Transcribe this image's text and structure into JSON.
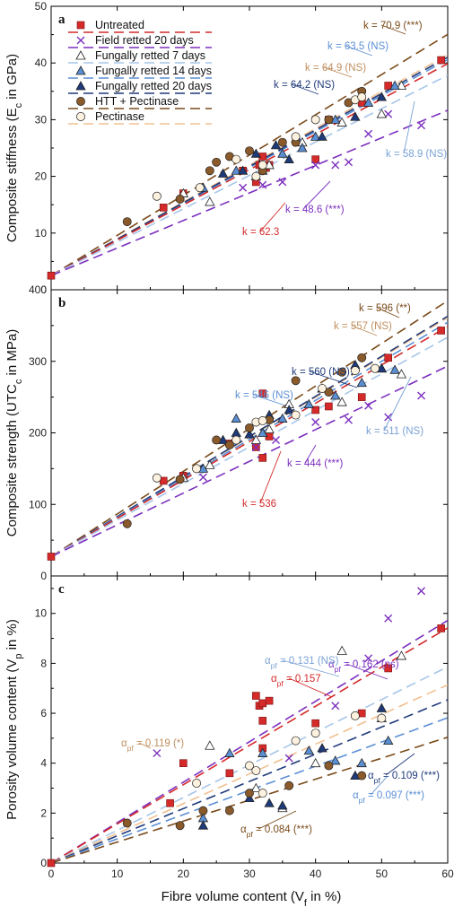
{
  "colors": {
    "untreated": "#d42a2a",
    "field": "#7b2fbe",
    "fung7": "#a7c6e8",
    "fung14": "#5b8fd4",
    "fung20": "#1f3a7a",
    "htt": "#7a4a1a",
    "htt_marker": "#8a5a2b",
    "pectinase": "#f0c090",
    "pectinase_marker": "#fdf2df"
  },
  "legend": {
    "untreated": "Untreated",
    "field": "Field retted 20 days",
    "fung7": "Fungally retted 7 days",
    "fung14": "Fungally retted 14 days",
    "fung20": "Fungally retted 20 days",
    "htt": "HTT + Pectinase",
    "pectinase": "Pectinase"
  },
  "chart_data": [
    {
      "type": "scatter",
      "panel_label": "a",
      "xlabel": "",
      "ylabel_main": "Composite stiffness (E",
      "ylabel_sub": "c",
      "ylabel_end": " in GPa)",
      "xlim": [
        0,
        60
      ],
      "ylim": [
        0,
        50
      ],
      "yticks": [
        "0",
        "10",
        "20",
        "30",
        "40",
        "50"
      ],
      "intercept": 2.5,
      "lines": [
        {
          "key": "htt",
          "slope": 70.9,
          "label": "k = 70.9 (***)"
        },
        {
          "key": "pectinase",
          "slope": 64.9,
          "label": "k = 64.9 (NS)"
        },
        {
          "key": "fung14",
          "slope": 63.5,
          "label": "k = 63.5 (NS)"
        },
        {
          "key": "fung20",
          "slope": 64.2,
          "label": "k = 64.2 (NS)"
        },
        {
          "key": "untreated",
          "slope": 62.3,
          "label": "k = 62.3"
        },
        {
          "key": "fung7",
          "slope": 58.9,
          "label": "k = 58.9 (NS)"
        },
        {
          "key": "field",
          "slope": 48.6,
          "label": "k = 48.6 (***)"
        }
      ],
      "series": [
        {
          "key": "untreated",
          "marker": "square",
          "points": [
            [
              0,
              2.5
            ],
            [
              17,
              14.5
            ],
            [
              20,
              17
            ],
            [
              29,
              21
            ],
            [
              31,
              19
            ],
            [
              31.5,
              22
            ],
            [
              32,
              23.5
            ],
            [
              32.5,
              21.5
            ],
            [
              33,
              22
            ],
            [
              40,
              23
            ],
            [
              42,
              30
            ],
            [
              47,
              33
            ],
            [
              51,
              36
            ],
            [
              59,
              40.5
            ]
          ]
        },
        {
          "key": "field",
          "marker": "x",
          "points": [
            [
              29,
              18
            ],
            [
              32,
              18.5
            ],
            [
              35,
              19
            ],
            [
              40,
              22
            ],
            [
              43,
              22
            ],
            [
              45,
              22.5
            ],
            [
              48,
              27.5
            ],
            [
              51,
              31
            ],
            [
              56,
              29
            ]
          ]
        },
        {
          "key": "fung7",
          "marker": "triangle",
          "points": [
            [
              20,
              17
            ],
            [
              24,
              15.5
            ],
            [
              31,
              20
            ],
            [
              33,
              22
            ],
            [
              38,
              26
            ],
            [
              44,
              29.5
            ],
            [
              50,
              31
            ],
            [
              53,
              36
            ]
          ]
        },
        {
          "key": "fung14",
          "marker": "triangle",
          "points": [
            [
              23,
              18
            ],
            [
              28,
              21
            ],
            [
              32,
              21
            ],
            [
              35,
              24
            ],
            [
              38,
              25
            ],
            [
              40,
              27
            ],
            [
              43,
              30
            ],
            [
              48,
              33
            ],
            [
              52,
              36
            ]
          ]
        },
        {
          "key": "fung20",
          "marker": "triangle",
          "points": [
            [
              26,
              20.5
            ],
            [
              29,
              21
            ],
            [
              31,
              24
            ],
            [
              34,
              25.5
            ],
            [
              36,
              23
            ],
            [
              41,
              27
            ],
            [
              46,
              30.5
            ],
            [
              50,
              34
            ]
          ]
        },
        {
          "key": "htt",
          "marker": "circle",
          "points": [
            [
              11.5,
              12
            ],
            [
              19.5,
              16
            ],
            [
              24,
              21
            ],
            [
              25,
              22.5
            ],
            [
              27,
              23.5
            ],
            [
              30,
              24.5
            ],
            [
              32,
              21
            ],
            [
              35,
              26
            ],
            [
              37,
              26
            ],
            [
              42,
              30
            ],
            [
              45,
              33
            ],
            [
              47,
              35
            ]
          ]
        },
        {
          "key": "pectinase",
          "marker": "circle",
          "points": [
            [
              16,
              16.5
            ],
            [
              22.5,
              18
            ],
            [
              28,
              23
            ],
            [
              31,
              20
            ],
            [
              32,
              22
            ],
            [
              37,
              27
            ],
            [
              40,
              30
            ],
            [
              46,
              33.5
            ],
            [
              47,
              34
            ]
          ]
        }
      ]
    },
    {
      "type": "scatter",
      "panel_label": "b",
      "xlabel": "",
      "ylabel_main": "Composite strength (UTC",
      "ylabel_sub": "c",
      "ylabel_end": " in MPa)",
      "xlim": [
        0,
        60
      ],
      "ylim": [
        0,
        400
      ],
      "yticks": [
        "0",
        "100",
        "200",
        "300",
        "400"
      ],
      "intercept": 27,
      "lines": [
        {
          "key": "htt",
          "slope": 596,
          "label": "k = 596 (**)"
        },
        {
          "key": "pectinase",
          "slope": 557,
          "label": "k = 557 (NS)"
        },
        {
          "key": "fung20",
          "slope": 560,
          "label": "k = 560 (NS)"
        },
        {
          "key": "fung14",
          "slope": 546,
          "label": "k = 546 (NS)"
        },
        {
          "key": "untreated",
          "slope": 536,
          "label": "k = 536"
        },
        {
          "key": "fung7",
          "slope": 511,
          "label": "k = 511 (NS)"
        },
        {
          "key": "field",
          "slope": 444,
          "label": "k = 444 (***)"
        }
      ],
      "series": [
        {
          "key": "untreated",
          "marker": "square",
          "points": [
            [
              0,
              27
            ],
            [
              17,
              133
            ],
            [
              20,
              140
            ],
            [
              27,
              185
            ],
            [
              31,
              180
            ],
            [
              32,
              165
            ],
            [
              32,
              255
            ],
            [
              33,
              195
            ],
            [
              42,
              237
            ],
            [
              40,
              232
            ],
            [
              47,
              250
            ],
            [
              51,
              305
            ],
            [
              59,
              343
            ]
          ]
        },
        {
          "key": "field",
          "marker": "x",
          "points": [
            [
              23,
              138
            ],
            [
              31,
              180
            ],
            [
              34,
              190
            ],
            [
              40,
              215
            ],
            [
              45,
              218
            ],
            [
              48,
              238
            ],
            [
              51,
              222
            ],
            [
              56,
              252
            ]
          ]
        },
        {
          "key": "fung7",
          "marker": "triangle",
          "points": [
            [
              20,
              137
            ],
            [
              24,
              155
            ],
            [
              31,
              190
            ],
            [
              33,
              205
            ],
            [
              36,
              240
            ],
            [
              44,
              243
            ],
            [
              50,
              290
            ],
            [
              53,
              282
            ]
          ]
        },
        {
          "key": "fung14",
          "marker": "triangle",
          "points": [
            [
              23,
              150
            ],
            [
              28,
              220
            ],
            [
              32,
              200
            ],
            [
              35,
              220
            ],
            [
              39,
              240
            ],
            [
              43,
              252
            ],
            [
              47,
              270
            ],
            [
              52,
              288
            ]
          ]
        },
        {
          "key": "fung20",
          "marker": "triangle",
          "points": [
            [
              26,
              190
            ],
            [
              28,
              200
            ],
            [
              30,
              198
            ],
            [
              33,
              225
            ],
            [
              36,
              232
            ],
            [
              41,
              262
            ],
            [
              46,
              295
            ],
            [
              50,
              290
            ]
          ]
        },
        {
          "key": "htt",
          "marker": "circle",
          "points": [
            [
              11.5,
              73
            ],
            [
              19.5,
              135
            ],
            [
              25,
              190
            ],
            [
              27,
              183
            ],
            [
              30,
              207
            ],
            [
              33,
              218
            ],
            [
              37,
              273
            ],
            [
              42,
              257
            ],
            [
              44,
              285
            ],
            [
              47,
              305
            ]
          ]
        },
        {
          "key": "pectinase",
          "marker": "circle",
          "points": [
            [
              16,
              137
            ],
            [
              22,
              150
            ],
            [
              28,
              190
            ],
            [
              31,
              215
            ],
            [
              32,
              217
            ],
            [
              37,
              225
            ],
            [
              41,
              262
            ],
            [
              46,
              287
            ],
            [
              49,
              290
            ]
          ]
        }
      ]
    },
    {
      "type": "scatter",
      "panel_label": "c",
      "xlabel_main": "Fibre volume content (V",
      "xlabel_sub": "f",
      "xlabel_end": " in %)",
      "ylabel_main": "Porosity volume content (V",
      "ylabel_sub": "p",
      "ylabel_end": " in %)",
      "xlim": [
        0,
        60
      ],
      "ylim": [
        0,
        11.5
      ],
      "xticks": [
        "0",
        "10",
        "20",
        "30",
        "40",
        "50",
        "60"
      ],
      "yticks": [
        "0",
        "2",
        "4",
        "6",
        "8",
        "10"
      ],
      "intercept": 0,
      "lines": [
        {
          "key": "field",
          "slope": 0.162,
          "label": "0.162 (ns)"
        },
        {
          "key": "untreated",
          "slope": 0.157,
          "label": "0.157"
        },
        {
          "key": "fung7",
          "slope": 0.131,
          "label": "0.131 (NS)"
        },
        {
          "key": "pectinase",
          "slope": 0.119,
          "label": "0.119 (*)"
        },
        {
          "key": "fung20",
          "slope": 0.109,
          "label": "0.109 (***)"
        },
        {
          "key": "fung14",
          "slope": 0.097,
          "label": "0.097 (***)"
        },
        {
          "key": "htt",
          "slope": 0.084,
          "label": "0.084 (***)"
        }
      ],
      "alpha_symbol": "α",
      "alpha_sub": "pf",
      "alpha_eq": " = ",
      "series": [
        {
          "key": "untreated",
          "marker": "square",
          "points": [
            [
              0,
              0
            ],
            [
              18,
              2.4
            ],
            [
              20,
              4
            ],
            [
              27,
              3.6
            ],
            [
              31,
              6.7
            ],
            [
              31.5,
              6.3
            ],
            [
              32,
              6.4
            ],
            [
              33,
              6.5
            ],
            [
              32,
              5.7
            ],
            [
              32,
              4.6
            ],
            [
              40,
              5.6
            ],
            [
              47,
              6
            ],
            [
              51,
              7.8
            ],
            [
              59,
              9.4
            ]
          ]
        },
        {
          "key": "field",
          "marker": "x",
          "points": [
            [
              16,
              4.4
            ],
            [
              36,
              4.2
            ],
            [
              43,
              6.3
            ],
            [
              48,
              8.2
            ],
            [
              51,
              9.8
            ],
            [
              56,
              10.9
            ]
          ]
        },
        {
          "key": "fung7",
          "marker": "triangle",
          "points": [
            [
              24,
              4.7
            ],
            [
              31,
              3.0
            ],
            [
              35,
              2.2
            ],
            [
              40,
              4.0
            ],
            [
              44,
              8.5
            ],
            [
              50,
              5.8
            ],
            [
              53,
              8.3
            ]
          ]
        },
        {
          "key": "fung14",
          "marker": "triangle",
          "points": [
            [
              23,
              1.8
            ],
            [
              27,
              4.4
            ],
            [
              32,
              4.4
            ],
            [
              39,
              4.5
            ],
            [
              43,
              4.1
            ],
            [
              47,
              4.0
            ],
            [
              51,
              4.9
            ]
          ]
        },
        {
          "key": "fung20",
          "marker": "triangle",
          "points": [
            [
              23,
              1.5
            ],
            [
              30,
              2.6
            ],
            [
              33,
              2.4
            ],
            [
              35,
              2.3
            ],
            [
              41,
              4.6
            ],
            [
              46,
              3.5
            ],
            [
              50,
              6.2
            ]
          ]
        },
        {
          "key": "htt",
          "marker": "circle",
          "points": [
            [
              11.5,
              1.6
            ],
            [
              19.5,
              1.5
            ],
            [
              23,
              2.1
            ],
            [
              27,
              2.1
            ],
            [
              30,
              2.8
            ],
            [
              36,
              3.1
            ],
            [
              42,
              3.9
            ],
            [
              47,
              3.5
            ]
          ]
        },
        {
          "key": "pectinase",
          "marker": "circle",
          "points": [
            [
              22,
              3.2
            ],
            [
              30,
              3.9
            ],
            [
              31,
              3.7
            ],
            [
              32,
              2.8
            ],
            [
              37,
              4.9
            ],
            [
              40,
              5.2
            ],
            [
              46,
              5.9
            ],
            [
              50,
              5.8
            ]
          ]
        }
      ]
    }
  ]
}
